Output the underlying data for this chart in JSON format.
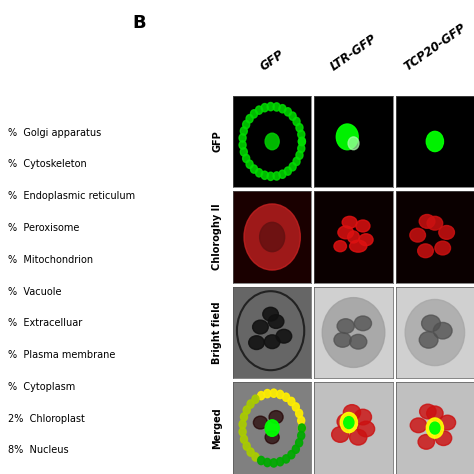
{
  "panel_label": "B",
  "col_headers": [
    "GFP",
    "LTR-GFP",
    "TCP20-GFP"
  ],
  "row_headers": [
    "GFP",
    "Chloroghy II",
    "Bright field",
    "Merged"
  ],
  "legend_items": [
    "%  Golgi apparatus",
    "%  Cytoskeleton",
    "%  Endoplasmic reticulum",
    "%  Peroxisome",
    "%  Mitochondrion",
    "%  Vacuole",
    "%  Extracelluar",
    "%  Plasma membrane",
    "%  Cytoplasm",
    "2%  Chloroplast",
    "8%  Nucleus"
  ],
  "bg_color": "#ffffff",
  "text_color": "#000000",
  "legend_fontsize": 7.0,
  "header_fontsize": 8.5,
  "panel_label_fontsize": 13
}
